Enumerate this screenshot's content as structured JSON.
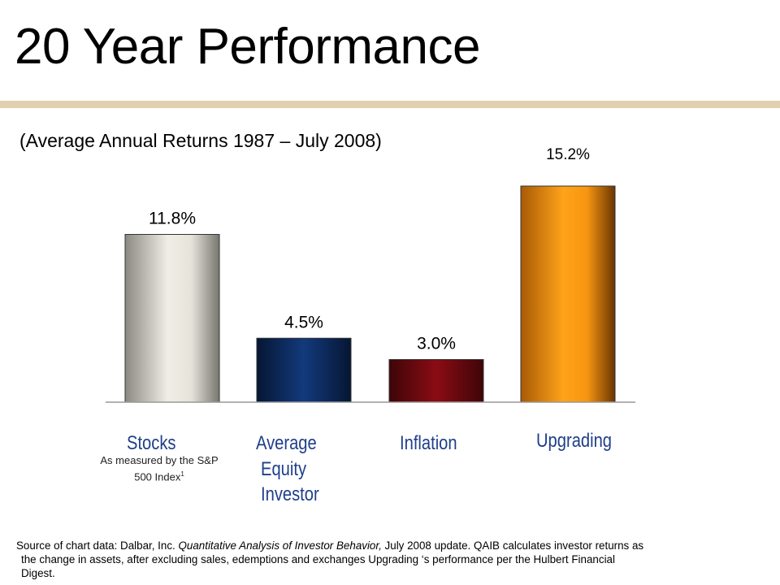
{
  "page": {
    "title": "20 Year Performance",
    "subtitle": "(Average Annual Returns 1987 – July 2008)"
  },
  "chart_data": {
    "type": "bar",
    "title": "",
    "xlabel": "",
    "ylabel": "",
    "categories": [
      "Stocks",
      "Average Equity Investor",
      "Inflation",
      "Upgrading"
    ],
    "values": [
      11.8,
      4.5,
      3.0,
      15.2
    ],
    "value_labels": [
      "11.8%",
      "4.5%",
      "3.0%",
      "15.2%"
    ],
    "ylim": [
      0,
      16
    ],
    "grid": false,
    "colors": [
      "#d8d6cc",
      "#0d2c61",
      "#6e0a10",
      "#f79611"
    ]
  },
  "categories_display": {
    "stocks": {
      "label": "Stocks",
      "note_line1": "As measured by the S&P",
      "note_line2": "500 Index",
      "note_sup": "1"
    },
    "investor": {
      "line1": "Average",
      "line2": "Equity",
      "line3": "Investor"
    },
    "inflation": {
      "label": "Inflation"
    },
    "upgrading": {
      "label": "Upgrading"
    }
  },
  "source": {
    "prefix": "Source of chart data:  Dalbar, Inc. ",
    "italic": "Quantitative Analysis of Investor Behavior,",
    "rest1": " July 2008 update. QAIB calculates investor returns as",
    "line2": "the change in assets, after excluding sales, edemptions and exchanges Upgrading ‘s performance per the Hulbert Financial",
    "line3": "Digest."
  }
}
